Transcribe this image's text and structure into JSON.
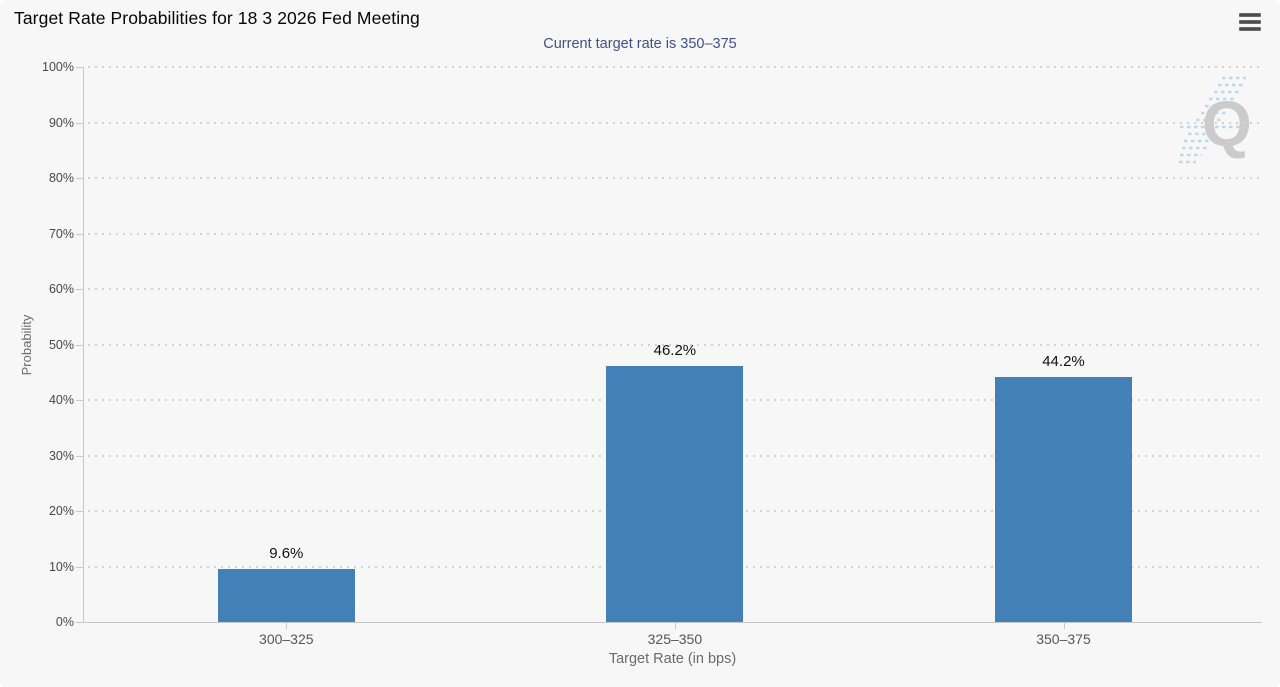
{
  "header": {
    "title": "Target Rate Probabilities for 18 3 2026 Fed Meeting"
  },
  "icons": {
    "menu": "hamburger-icon",
    "watermark": "q-logo"
  },
  "chart_data": {
    "type": "bar",
    "title": "Target Rate Probabilities for 18 3 2026 Fed Meeting",
    "subtitle": "Current target rate is 350–375",
    "categories": [
      "300–325",
      "325–350",
      "350–375"
    ],
    "values": [
      9.6,
      46.2,
      44.2
    ],
    "value_labels": [
      "9.6%",
      "46.2%",
      "44.2%"
    ],
    "xlabel": "Target Rate (in bps)",
    "ylabel": "Probability",
    "ylim": [
      0,
      100
    ],
    "ytick_step": 10,
    "ytick_labels": [
      "0%",
      "10%",
      "20%",
      "30%",
      "40%",
      "50%",
      "60%",
      "70%",
      "80%",
      "90%",
      "100%"
    ],
    "grid": "horizontal-dotted",
    "legend": "none",
    "bar_color": "#4380b6",
    "subtitle_color": "#44508a",
    "watermark_text": "Q"
  }
}
